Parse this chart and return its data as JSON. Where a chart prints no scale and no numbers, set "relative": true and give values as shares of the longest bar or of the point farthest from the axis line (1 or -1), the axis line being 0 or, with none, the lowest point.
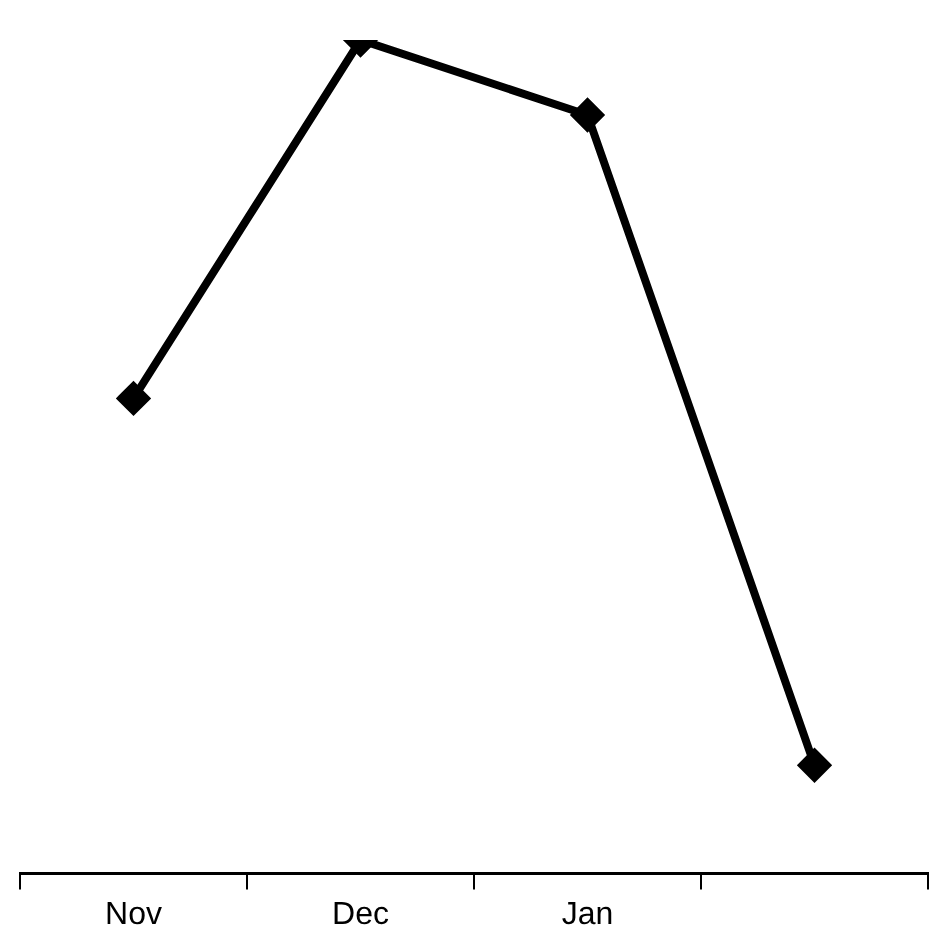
{
  "chart_data": {
    "type": "line",
    "relative": true,
    "categories": [
      "Nov",
      "Dec",
      "Jan",
      null
    ],
    "series": [
      {
        "color": "#000000",
        "values": [
          0.57,
          1,
          0.91,
          0.13
        ]
      }
    ],
    "marker": "diamond",
    "legend": false,
    "grid": false
  }
}
